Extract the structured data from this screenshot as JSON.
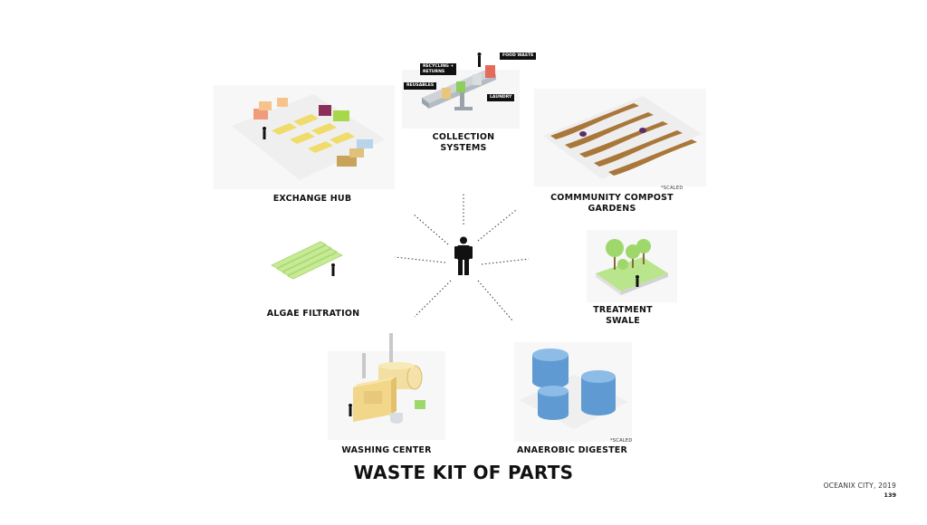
{
  "title": "WASTE KIT OF PARTS",
  "credit": "OCEANIX CITY,  2019",
  "page_number": "139",
  "parts": {
    "collection": {
      "label_line1": "COLLECTION",
      "label_line2": "SYSTEMS"
    },
    "exchange": {
      "label": "EXCHANGE HUB"
    },
    "compost": {
      "label_line1": "COMMMUNITY COMPOST",
      "label_line2": "GARDENS",
      "note": "*SCALED"
    },
    "algae": {
      "label": "ALGAE FILTRATION"
    },
    "swale": {
      "label_line1": "TREATMENT",
      "label_line2": "SWALE"
    },
    "washing": {
      "label": "WASHING CENTER"
    },
    "digester": {
      "label": "ANAEROBIC DIGESTER",
      "note": "*SCALED"
    }
  },
  "collection_tags": {
    "recycling_line1": "RECYCLING +",
    "recycling_line2": "RETURNS",
    "reusables": "REUSABLES",
    "food_waste": "FOOD WASTE",
    "laundry": "LAUNDRY"
  },
  "colors": {
    "text": "#111111",
    "algae_green": "#b7e07a",
    "digester_blue": "#6fa6d8",
    "compost_brown": "#a9773a",
    "washing_yellow": "#f2d68a",
    "swale_green": "#9ed86a"
  }
}
